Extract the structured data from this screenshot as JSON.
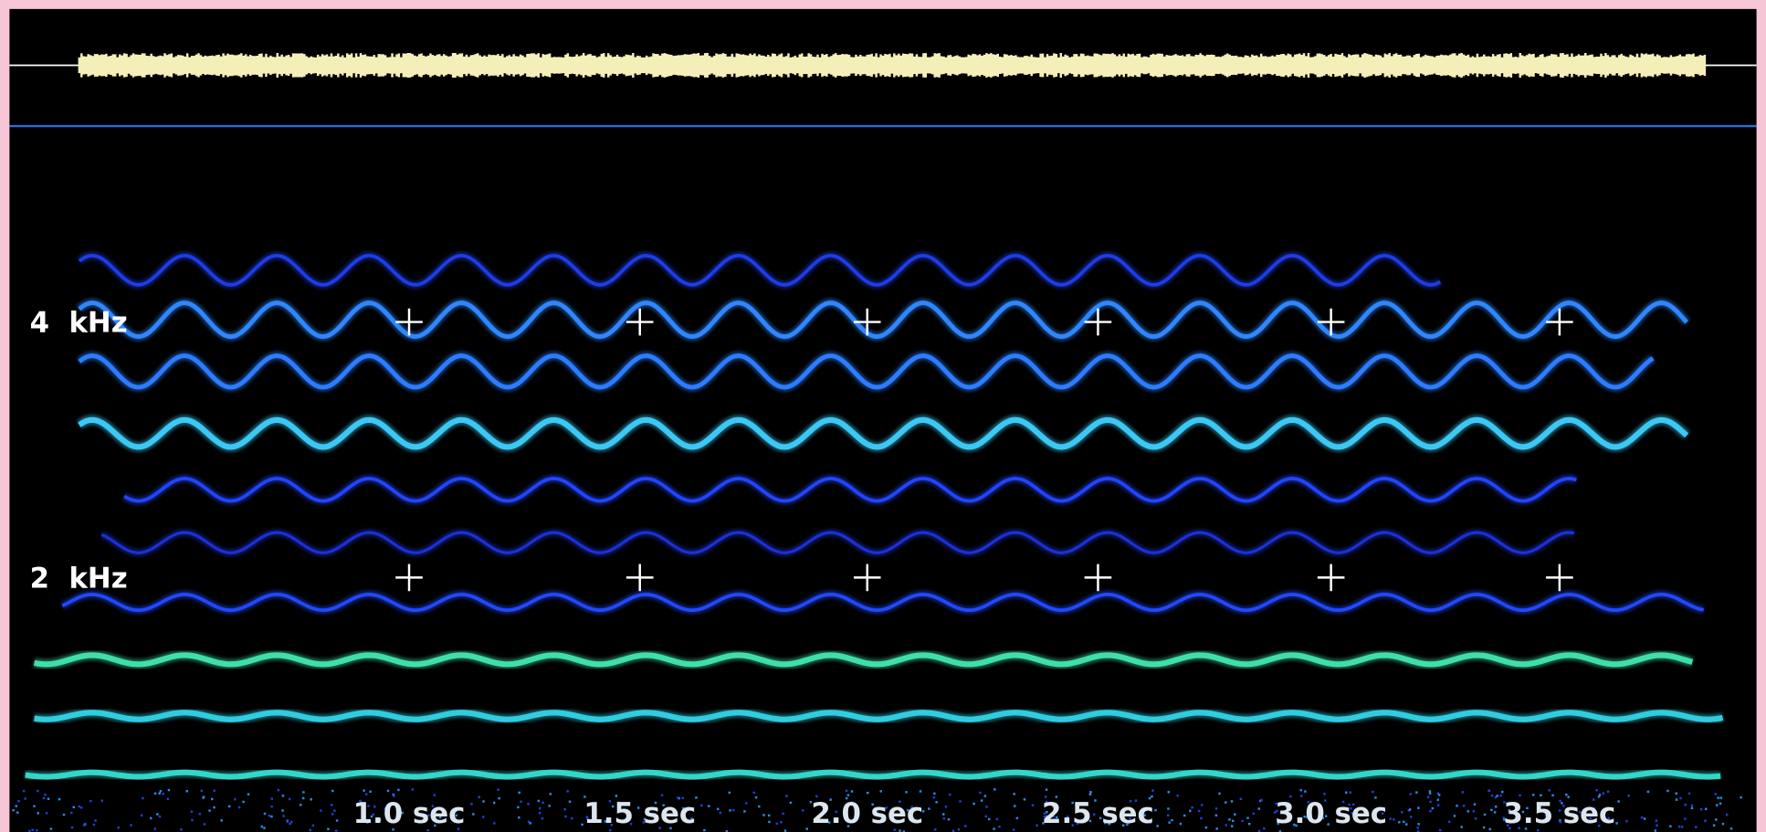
{
  "y_labels": [
    "4  kHz",
    "2  kHz"
  ],
  "x_labels": [
    "1.0 sec",
    "1.5 sec",
    "2.0 sec",
    "2.5 sec",
    "3.0 sec",
    "3.5 sec"
  ]
}
